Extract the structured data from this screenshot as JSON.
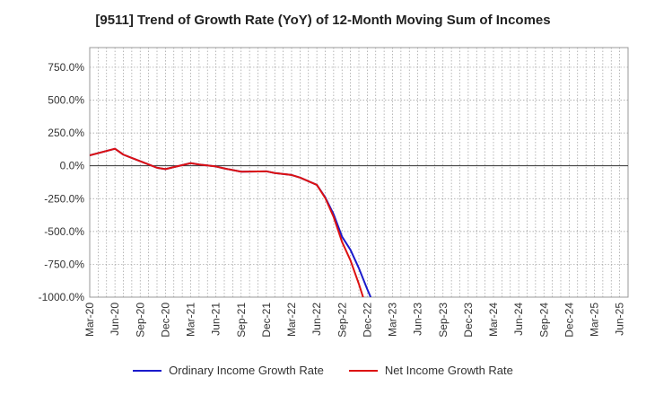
{
  "chart_data": {
    "type": "line",
    "title": "[9511]  Trend of Growth Rate (YoY) of 12-Month Moving Sum of Incomes",
    "xlabel": "",
    "ylabel": "",
    "x_categories": [
      "Mar-20",
      "Jun-20",
      "Sep-20",
      "Dec-20",
      "Mar-21",
      "Jun-21",
      "Sep-21",
      "Dec-21",
      "Mar-22",
      "Jun-22",
      "Sep-22",
      "Dec-22",
      "Mar-23",
      "Jun-23",
      "Sep-23",
      "Dec-23",
      "Mar-24",
      "Jun-24",
      "Sep-24",
      "Dec-24",
      "Mar-25",
      "Jun-25"
    ],
    "y_ticks": [
      "750.0%",
      "500.0%",
      "250.0%",
      "0.0%",
      "-250.0%",
      "-500.0%",
      "-750.0%",
      "-1000.0%"
    ],
    "y_tick_values": [
      750,
      500,
      250,
      0,
      -250,
      -500,
      -750,
      -1000
    ],
    "ylim": [
      -1000,
      900
    ],
    "x_count": 64,
    "grid": true,
    "legend_position": "bottom",
    "series": [
      {
        "name": "Ordinary Income Growth Rate",
        "color": "#1a1acc",
        "points": [
          [
            0,
            80
          ],
          [
            3,
            130
          ],
          [
            4,
            85
          ],
          [
            5,
            60
          ],
          [
            6,
            35
          ],
          [
            7,
            10
          ],
          [
            8,
            -15
          ],
          [
            9,
            -25
          ],
          [
            10,
            -10
          ],
          [
            12,
            20
          ],
          [
            13,
            10
          ],
          [
            15,
            -5
          ],
          [
            16,
            -20
          ],
          [
            18,
            -45
          ],
          [
            21,
            -42
          ],
          [
            22,
            -55
          ],
          [
            24,
            -70
          ],
          [
            25,
            -90
          ],
          [
            27,
            -145
          ],
          [
            28,
            -240
          ],
          [
            29,
            -370
          ],
          [
            30,
            -540
          ],
          [
            31,
            -640
          ],
          [
            32,
            -780
          ],
          [
            33,
            -940
          ],
          [
            33.4,
            -1000
          ]
        ]
      },
      {
        "name": "Net Income Growth Rate",
        "color": "#dd1111",
        "points": [
          [
            0,
            80
          ],
          [
            3,
            130
          ],
          [
            4,
            85
          ],
          [
            5,
            60
          ],
          [
            6,
            35
          ],
          [
            7,
            10
          ],
          [
            8,
            -15
          ],
          [
            9,
            -25
          ],
          [
            10,
            -10
          ],
          [
            12,
            20
          ],
          [
            13,
            10
          ],
          [
            15,
            -5
          ],
          [
            16,
            -20
          ],
          [
            18,
            -45
          ],
          [
            21,
            -42
          ],
          [
            22,
            -55
          ],
          [
            24,
            -70
          ],
          [
            25,
            -90
          ],
          [
            27,
            -145
          ],
          [
            28,
            -245
          ],
          [
            29,
            -390
          ],
          [
            30,
            -580
          ],
          [
            31,
            -720
          ],
          [
            32,
            -900
          ],
          [
            32.5,
            -1000
          ]
        ]
      }
    ]
  }
}
